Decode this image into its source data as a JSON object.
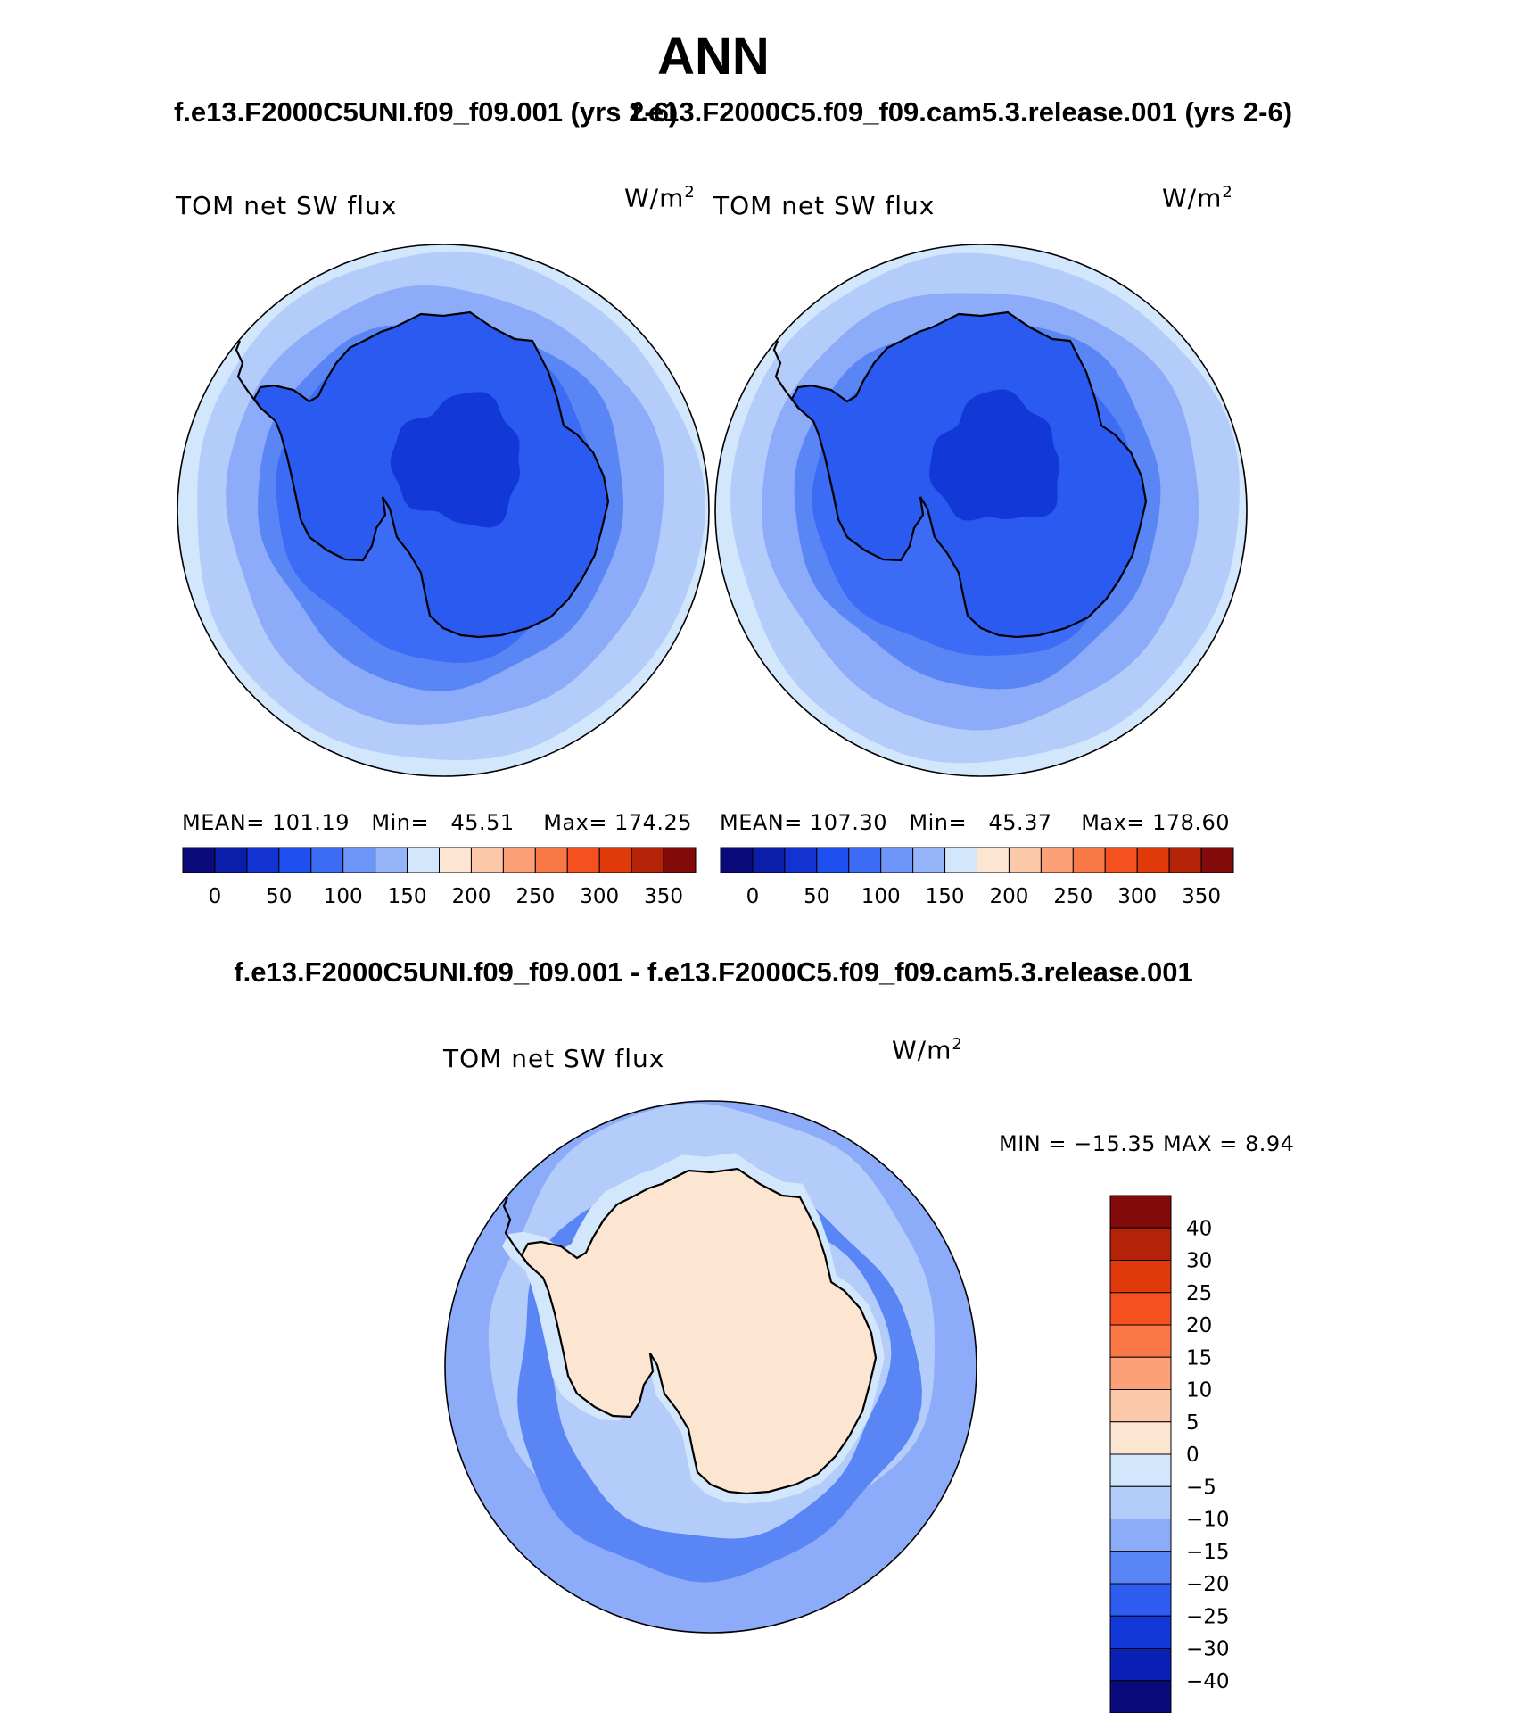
{
  "title": "ANN",
  "panels": [
    {
      "case_label": "f.e13.F2000C5UNI.f09_f09.001 (yrs 2-6)",
      "plot_title": "TOM net SW flux",
      "units": "W/m",
      "units_exp": "2",
      "stats": {
        "mean_label": "MEAN=",
        "mean": "101.19",
        "min_label": "Min=",
        "min": "45.51",
        "max_label": "Max=",
        "max": "174.25"
      }
    },
    {
      "case_label": "f.e13.F2000C5.f09_f09.cam5.3.release.001 (yrs 2-6)",
      "plot_title": "TOM net SW flux",
      "units": "W/m",
      "units_exp": "2",
      "stats": {
        "mean_label": "MEAN=",
        "mean": "107.30",
        "min_label": "Min=",
        "min": "45.37",
        "max_label": "Max=",
        "max": "178.60"
      }
    }
  ],
  "abs_colorbar": {
    "colors": [
      "#0a0a7a",
      "#0a1eaa",
      "#1232d2",
      "#1e50f0",
      "#3c6cf5",
      "#6e96fa",
      "#96b4fa",
      "#d2e6fc",
      "#fce6d2",
      "#fcc8aa",
      "#fca078",
      "#f87846",
      "#f55020",
      "#e03a0a",
      "#b42208",
      "#820a0a"
    ],
    "labels": [
      "0",
      "50",
      "100",
      "150",
      "200",
      "250",
      "300",
      "350"
    ]
  },
  "diff": {
    "title": "f.e13.F2000C5UNI.f09_f09.001 - f.e13.F2000C5.f09_f09.cam5.3.release.001",
    "plot_title": "TOM net SW flux",
    "units": "W/m",
    "units_exp": "2",
    "minmax": "MIN = −15.35 MAX =    8.94",
    "colorbar": {
      "colors": [
        "#820a0a",
        "#b42208",
        "#e03a0a",
        "#f55020",
        "#fa7846",
        "#fca078",
        "#fcc8aa",
        "#fce6d2",
        "#d2e6fc",
        "#b4ccfa",
        "#8cacfa",
        "#5a86f5",
        "#2e5cf0",
        "#1238d8",
        "#0a20b4",
        "#0a0a7a"
      ],
      "labels": [
        "40",
        "30",
        "25",
        "20",
        "15",
        "10",
        "5",
        "0",
        "−5",
        "−10",
        "−15",
        "−20",
        "−25",
        "−30",
        "−40"
      ]
    }
  },
  "map_colors": {
    "abs_outer": "#d2e6fc",
    "abs_ring1": "#b4ccfa",
    "abs_ring2": "#8cacfa",
    "abs_ring3": "#5a86f5",
    "abs_ring4": "#3c6cf5",
    "abs_land": "#2a5af0",
    "abs_core": "#1238d8",
    "diff_base": "#8cacfa",
    "diff_outer": "#b4ccfa",
    "diff_band": "#5a86f5",
    "diff_light": "#d2e6fc",
    "diff_land": "#fce6d2"
  }
}
